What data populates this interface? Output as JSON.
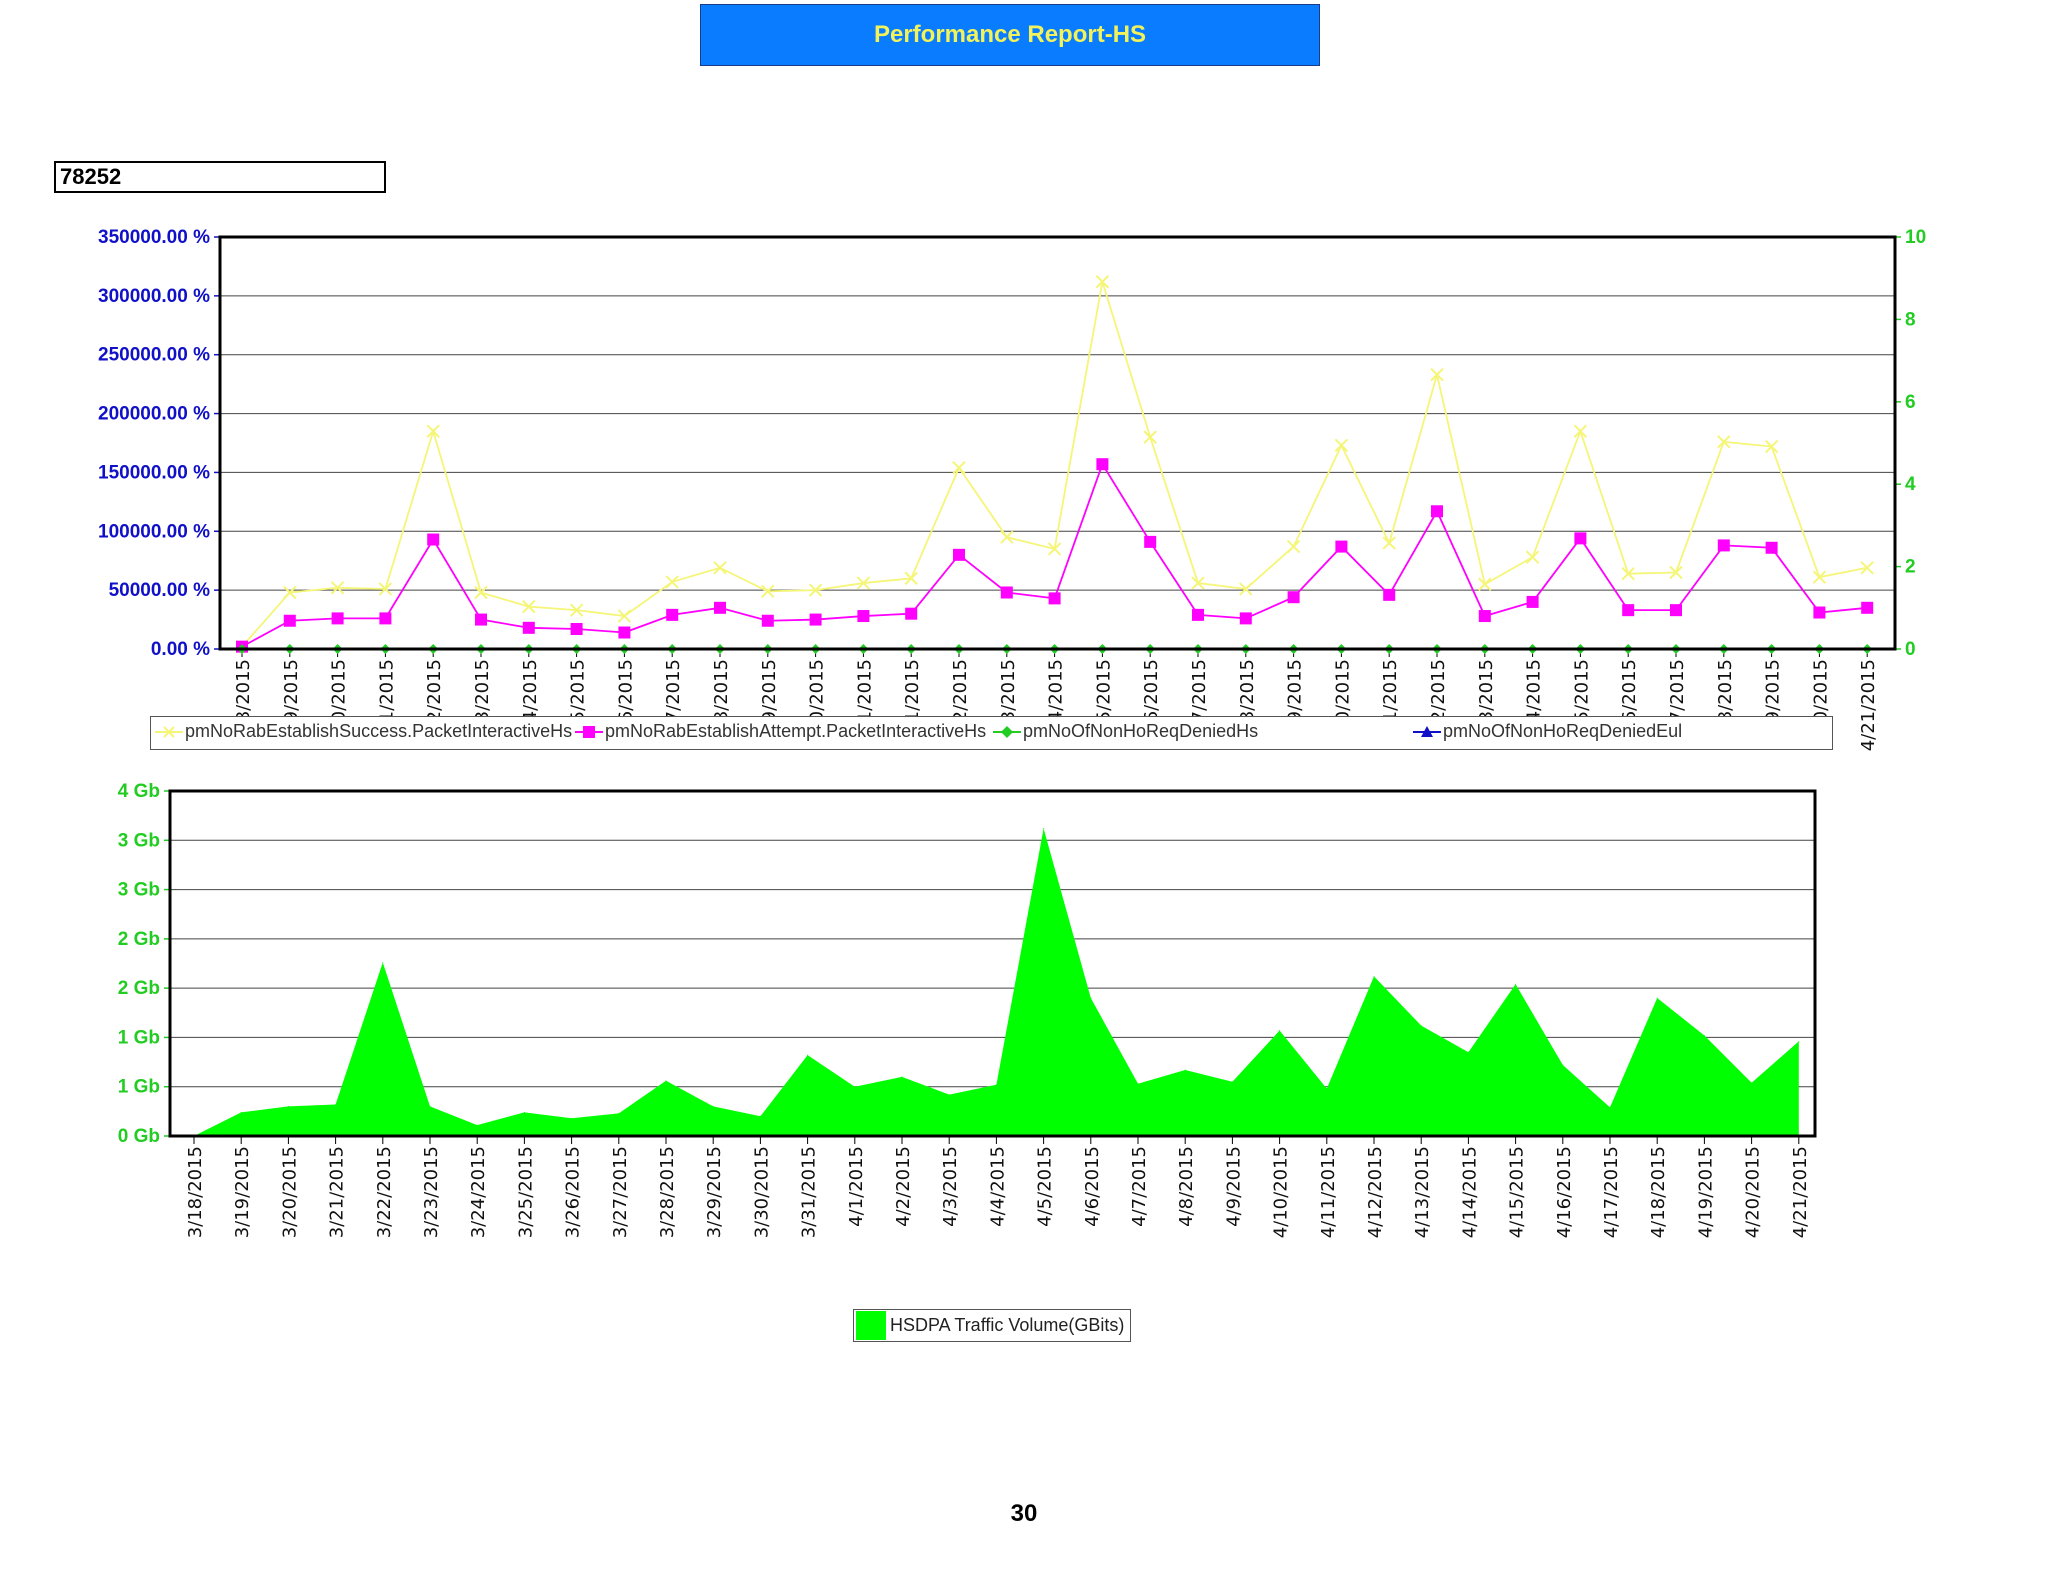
{
  "report": {
    "title": "Performance Report-HS",
    "cell_id": "78252",
    "page_number": "30"
  },
  "colors": {
    "header_bg": "#0a7cff",
    "header_text": "#f2f25a",
    "left_axis": "#1010c8",
    "right_axis": "#22cc22",
    "success": "#f5f578",
    "attempt": "#ff00ff",
    "denied_hs": "#22cc22",
    "denied_eul": "#1010c8",
    "traffic": "#00ff00"
  },
  "chart_data": [
    {
      "type": "line",
      "x_tick_labels": [
        "8/2015",
        "9/2015",
        "0/2015",
        "1/2015",
        "2/2015",
        "3/2015",
        "4/2015",
        "5/2015",
        "6/2015",
        "7/2015",
        "8/2015",
        "9/2015",
        "0/2015",
        "1/2015",
        "1/2015",
        "2/2015",
        "3/2015",
        "4/2015",
        "5/2015",
        "6/2015",
        "7/2015",
        "8/2015",
        "9/2015",
        "0/2015",
        "1/2015",
        "2/2015",
        "3/2015",
        "4/2015",
        "5/2015",
        "6/2015",
        "7/2015",
        "8/2015",
        "9/2015",
        "0/2015",
        "4/21/2015"
      ],
      "y_left": {
        "ticks": [
          "350000.00 %",
          "300000.00 %",
          "250000.00 %",
          "200000.00 %",
          "150000.00 %",
          "100000.00 %",
          "50000.00 %",
          "0.00 %"
        ],
        "range": [
          0,
          350000
        ]
      },
      "y_right": {
        "ticks": [
          "10",
          "8",
          "6",
          "4",
          "2",
          "0"
        ],
        "range": [
          0,
          10
        ]
      },
      "series": [
        {
          "name": "pmNoRabEstablishSuccess.PacketInteractiveHs",
          "axis": "left",
          "marker": "x",
          "values": [
            2000,
            48000,
            52000,
            51000,
            185000,
            48000,
            36000,
            33000,
            28000,
            57000,
            69000,
            49000,
            50000,
            56000,
            60000,
            154000,
            95000,
            85000,
            312000,
            180000,
            56000,
            51000,
            87000,
            173000,
            90000,
            233000,
            55000,
            78000,
            185000,
            64000,
            65000,
            176000,
            172000,
            61000,
            69000
          ]
        },
        {
          "name": "pmNoRabEstablishAttempt.PacketInteractiveHs",
          "axis": "left",
          "marker": "square",
          "values": [
            2000,
            24000,
            26000,
            26000,
            93000,
            25000,
            18000,
            17000,
            14000,
            29000,
            35000,
            24000,
            25000,
            28000,
            30000,
            80000,
            48000,
            43000,
            157000,
            91000,
            29000,
            26000,
            44000,
            87000,
            46000,
            117000,
            28000,
            40000,
            94000,
            33000,
            33000,
            88000,
            86000,
            31000,
            35000
          ]
        },
        {
          "name": "pmNoOfNonHoReqDeniedHs",
          "axis": "right",
          "marker": "diamond",
          "values": [
            0,
            0,
            0,
            0,
            0,
            0,
            0,
            0,
            0,
            0,
            0,
            0,
            0,
            0,
            0,
            0,
            0,
            0,
            0,
            0,
            0,
            0,
            0,
            0,
            0,
            0,
            0,
            0,
            0,
            0,
            0,
            0,
            0,
            0,
            0
          ]
        },
        {
          "name": "pmNoOfNonHoReqDeniedEul",
          "axis": "right",
          "marker": "triangle",
          "values": [
            0,
            0,
            0,
            0,
            0,
            0,
            0,
            0,
            0,
            0,
            0,
            0,
            0,
            0,
            0,
            0,
            0,
            0,
            0,
            0,
            0,
            0,
            0,
            0,
            0,
            0,
            0,
            0,
            0,
            0,
            0,
            0,
            0,
            0,
            0
          ]
        }
      ],
      "grid": true,
      "legend": "bottom"
    },
    {
      "type": "area",
      "x_tick_labels": [
        "3/18/2015",
        "3/19/2015",
        "3/20/2015",
        "3/21/2015",
        "3/22/2015",
        "3/23/2015",
        "3/24/2015",
        "3/25/2015",
        "3/26/2015",
        "3/27/2015",
        "3/28/2015",
        "3/29/2015",
        "3/30/2015",
        "3/31/2015",
        "4/1/2015",
        "4/2/2015",
        "4/3/2015",
        "4/4/2015",
        "4/5/2015",
        "4/6/2015",
        "4/7/2015",
        "4/8/2015",
        "4/9/2015",
        "4/10/2015",
        "4/11/2015",
        "4/12/2015",
        "4/13/2015",
        "4/14/2015",
        "4/15/2015",
        "4/16/2015",
        "4/17/2015",
        "4/18/2015",
        "4/19/2015",
        "4/20/2015",
        "4/21/2015"
      ],
      "y_ticks": [
        "4 Gb",
        "3 Gb",
        "3 Gb",
        "2 Gb",
        "2 Gb",
        "1 Gb",
        "1 Gb",
        "0 Gb"
      ],
      "ylim": [
        0,
        3.5
      ],
      "series": [
        {
          "name": "HSDPA Traffic Volume(GBits)",
          "values": [
            0.0,
            0.24,
            0.3,
            0.32,
            1.76,
            0.3,
            0.11,
            0.24,
            0.18,
            0.23,
            0.56,
            0.3,
            0.2,
            0.82,
            0.5,
            0.6,
            0.42,
            0.52,
            3.12,
            1.4,
            0.53,
            0.67,
            0.55,
            1.07,
            0.48,
            1.62,
            1.12,
            0.85,
            1.54,
            0.72,
            0.29,
            1.4,
            1.02,
            0.54,
            0.96
          ]
        }
      ],
      "grid": true,
      "legend": "bottom"
    }
  ]
}
